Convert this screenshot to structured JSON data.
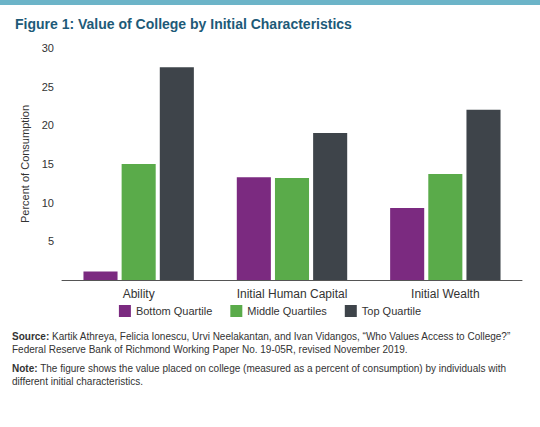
{
  "chart_data": {
    "type": "bar",
    "title": "Figure 1: Value of College by Initial Characteristics",
    "y_label": "Percent of Consumption",
    "categories": [
      "Ability",
      "Initial Human Capital",
      "Initial Wealth"
    ],
    "series": [
      {
        "name": "Bottom Quartile",
        "color": "#7b2a80",
        "values": [
          1.1,
          13.3,
          9.3
        ]
      },
      {
        "name": "Middle Quartiles",
        "color": "#5aab4a",
        "values": [
          15,
          13.2,
          13.7
        ]
      },
      {
        "name": "Top Quartile",
        "color": "#3e444a",
        "values": [
          27.5,
          19,
          22
        ]
      }
    ],
    "ylim": [
      0,
      30
    ],
    "yticks": [
      5,
      10,
      15,
      20,
      25,
      30
    ],
    "grid": false,
    "legend": "bottom",
    "source": "Source: Kartik Athreya, Felicia Ionescu, Urvi Neelakantan, and Ivan Vidangos, “Who Values Access to College?” Federal Reserve Bank of Richmond Working Paper No. 19-05R, revised November 2019.",
    "note": "Note: The figure shows the value placed on college (measured as a percent of consumption) by individuals with different initial characteristics."
  }
}
